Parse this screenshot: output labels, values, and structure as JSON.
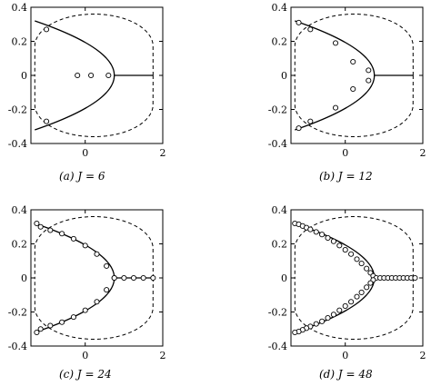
{
  "chart_data": [
    {
      "type": "scatter",
      "caption_label": "(a)",
      "caption_text": "J = 6",
      "xlim": [
        -1.4,
        2
      ],
      "ylim": [
        -0.4,
        0.4
      ],
      "xticks": [
        0,
        2
      ],
      "yticks": [
        -0.4,
        -0.2,
        0,
        0.2,
        0.4
      ],
      "ytick_labels": [
        "-0.4",
        "-0.2",
        "0",
        "0.2",
        "0.4"
      ],
      "xtick_labels": [
        "0",
        "2"
      ],
      "series": [
        {
          "x": [
            -1.0,
            -0.2,
            0.15,
            0.6,
            -1.0
          ],
          "y": [
            0.27,
            0.0,
            0.0,
            0.0,
            -0.27
          ]
        }
      ]
    },
    {
      "type": "scatter",
      "caption_label": "(b)",
      "caption_text": "J = 12",
      "xlim": [
        -1.4,
        2
      ],
      "ylim": [
        -0.4,
        0.4
      ],
      "xticks": [
        0,
        2
      ],
      "yticks": [
        -0.4,
        -0.2,
        0,
        0.2,
        0.4
      ],
      "ytick_labels": [
        "-0.4",
        "-0.2",
        "0",
        "0.2",
        "0.4"
      ],
      "xtick_labels": [
        "0",
        "2"
      ],
      "series": [
        {
          "x": [
            -1.2,
            -0.9,
            -0.25,
            0.2,
            0.6,
            0.6,
            0.2,
            -0.25,
            -0.9,
            -1.2
          ],
          "y": [
            0.31,
            0.27,
            0.19,
            0.08,
            0.03,
            -0.03,
            -0.08,
            -0.19,
            -0.27,
            -0.31
          ]
        }
      ]
    },
    {
      "type": "scatter",
      "caption_label": "(c)",
      "caption_text": "J = 24",
      "xlim": [
        -1.4,
        2
      ],
      "ylim": [
        -0.4,
        0.4
      ],
      "xticks": [
        0,
        2
      ],
      "yticks": [
        -0.4,
        -0.2,
        0,
        0.2,
        0.4
      ],
      "ytick_labels": [
        "-0.4",
        "-0.2",
        "0",
        "0.2",
        "0.4"
      ],
      "xtick_labels": [
        "0",
        "2"
      ],
      "series": [
        {
          "x": [
            -1.25,
            -1.15,
            -0.9,
            -0.6,
            -0.3,
            0.0,
            0.3,
            0.55,
            0.75,
            0.75,
            1.0,
            1.25,
            1.5,
            1.75,
            0.55,
            0.3,
            0.0,
            -0.3,
            -0.6,
            -0.9,
            -1.15,
            -1.25
          ],
          "y": [
            0.32,
            0.3,
            0.28,
            0.26,
            0.23,
            0.19,
            0.14,
            0.07,
            0.0,
            0.0,
            0.0,
            0.0,
            0.0,
            0.0,
            -0.07,
            -0.14,
            -0.19,
            -0.23,
            -0.26,
            -0.28,
            -0.3,
            -0.32
          ]
        }
      ]
    },
    {
      "type": "scatter",
      "caption_label": "(d)",
      "caption_text": "J = 48",
      "xlim": [
        -1.4,
        2
      ],
      "ylim": [
        -0.4,
        0.4
      ],
      "xticks": [
        0,
        2
      ],
      "yticks": [
        -0.4,
        -0.2,
        0,
        0.2,
        0.4
      ],
      "ytick_labels": [
        "-0.4",
        "-0.2",
        "0",
        "0.2",
        "0.4"
      ],
      "xtick_labels": [
        "0",
        "2"
      ],
      "series": [
        {
          "x": [
            -1.3,
            -1.2,
            -1.1,
            -1.0,
            -0.9,
            -0.75,
            -0.6,
            -0.45,
            -0.3,
            -0.15,
            0.0,
            0.15,
            0.3,
            0.42,
            0.55,
            0.65,
            0.72,
            0.8,
            0.9,
            1.0,
            1.1,
            1.2,
            1.3,
            1.4,
            1.5,
            1.6,
            1.7,
            1.8,
            0.72,
            0.65,
            0.55,
            0.42,
            0.3,
            0.15,
            0.0,
            -0.15,
            -0.3,
            -0.45,
            -0.6,
            -0.75,
            -0.9,
            -1.0,
            -1.1,
            -1.2,
            -1.3
          ],
          "y": [
            0.32,
            0.315,
            0.305,
            0.295,
            0.285,
            0.27,
            0.255,
            0.235,
            0.215,
            0.19,
            0.165,
            0.14,
            0.11,
            0.085,
            0.055,
            0.03,
            0.012,
            0.0,
            0.0,
            0.0,
            0.0,
            0.0,
            0.0,
            0.0,
            0.0,
            0.0,
            0.0,
            0.0,
            -0.012,
            -0.03,
            -0.055,
            -0.085,
            -0.11,
            -0.14,
            -0.165,
            -0.19,
            -0.215,
            -0.235,
            -0.255,
            -0.27,
            -0.285,
            -0.295,
            -0.305,
            -0.315,
            -0.32
          ]
        }
      ]
    }
  ]
}
